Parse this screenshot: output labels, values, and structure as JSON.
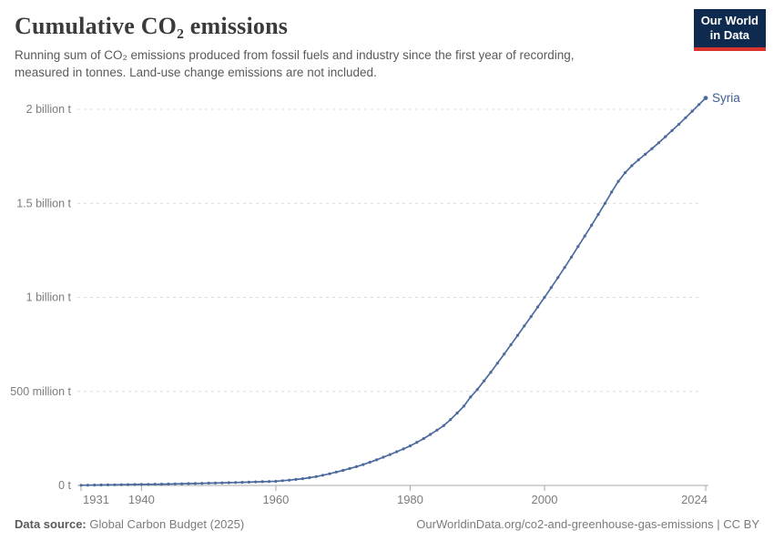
{
  "header": {
    "title": "Cumulative CO₂ emissions",
    "subtitle_lines": [
      "Running sum of CO₂ emissions produced from fossil fuels and industry since the first year of recording,",
      "measured in tonnes. Land-use change emissions are not included."
    ]
  },
  "logo": {
    "line1": "Our World",
    "line2": "in Data"
  },
  "footer": {
    "data_source_label": "Data source:",
    "data_source_value": " Global Carbon Budget (2025)",
    "right_text": "OurWorldinData.org/co2-and-greenhouse-gas-emissions | CC BY"
  },
  "colors": {
    "line": "#4c6a9c",
    "entity_label": "#3f5d93",
    "grid": "#dcdcdc",
    "axis": "#a8a8a8",
    "tick_label": "#7c7c7c",
    "title": "#3b3b3b",
    "subtitle": "#5a5a5a",
    "logo_bg": "#0e2a4e",
    "logo_red": "#da332e"
  },
  "chart_data": {
    "type": "line",
    "title": "Cumulative CO₂ emissions",
    "entity": "Syria",
    "unit": "tonnes",
    "x_range": [
      1931,
      2024
    ],
    "x_step": 1,
    "xticks": [
      1931,
      1940,
      1960,
      1980,
      2000,
      2024
    ],
    "yticks": [
      {
        "value": 0,
        "label": "0 t"
      },
      {
        "value": 500,
        "label": "500 million t"
      },
      {
        "value": 1000,
        "label": "1 billion t"
      },
      {
        "value": 1500,
        "label": "1.5 billion t"
      },
      {
        "value": 2000,
        "label": "2 billion t"
      }
    ],
    "ylim_million_t": [
      0,
      2000
    ],
    "grid": "dashed horizontal",
    "legend_position": "end-of-line",
    "series": [
      {
        "name": "Syria",
        "values_million_t": [
          1,
          1.4,
          1.8,
          2.2,
          2.7,
          3.2,
          3.7,
          4.3,
          4.9,
          5.5,
          6,
          6.5,
          7,
          7.5,
          8,
          8.7,
          9.5,
          10.3,
          11.1,
          12,
          12.8,
          13.6,
          14.5,
          15.4,
          16.3,
          17.5,
          18.8,
          19.8,
          21,
          22,
          25,
          28,
          32,
          36,
          41,
          47,
          54,
          62,
          71,
          80,
          90,
          100,
          111,
          123,
          136,
          150,
          164,
          179,
          194,
          210,
          229,
          249,
          271,
          294,
          318,
          350,
          385,
          422,
          470,
          510,
          556,
          602,
          650,
          699,
          748,
          798,
          848,
          898,
          949,
          1000,
          1052,
          1105,
          1159,
          1214,
          1270,
          1326,
          1383,
          1441,
          1500,
          1560,
          1617,
          1663,
          1700,
          1731,
          1761,
          1791,
          1822,
          1854,
          1887,
          1920,
          1955,
          1990,
          2025,
          2060
        ]
      }
    ]
  }
}
